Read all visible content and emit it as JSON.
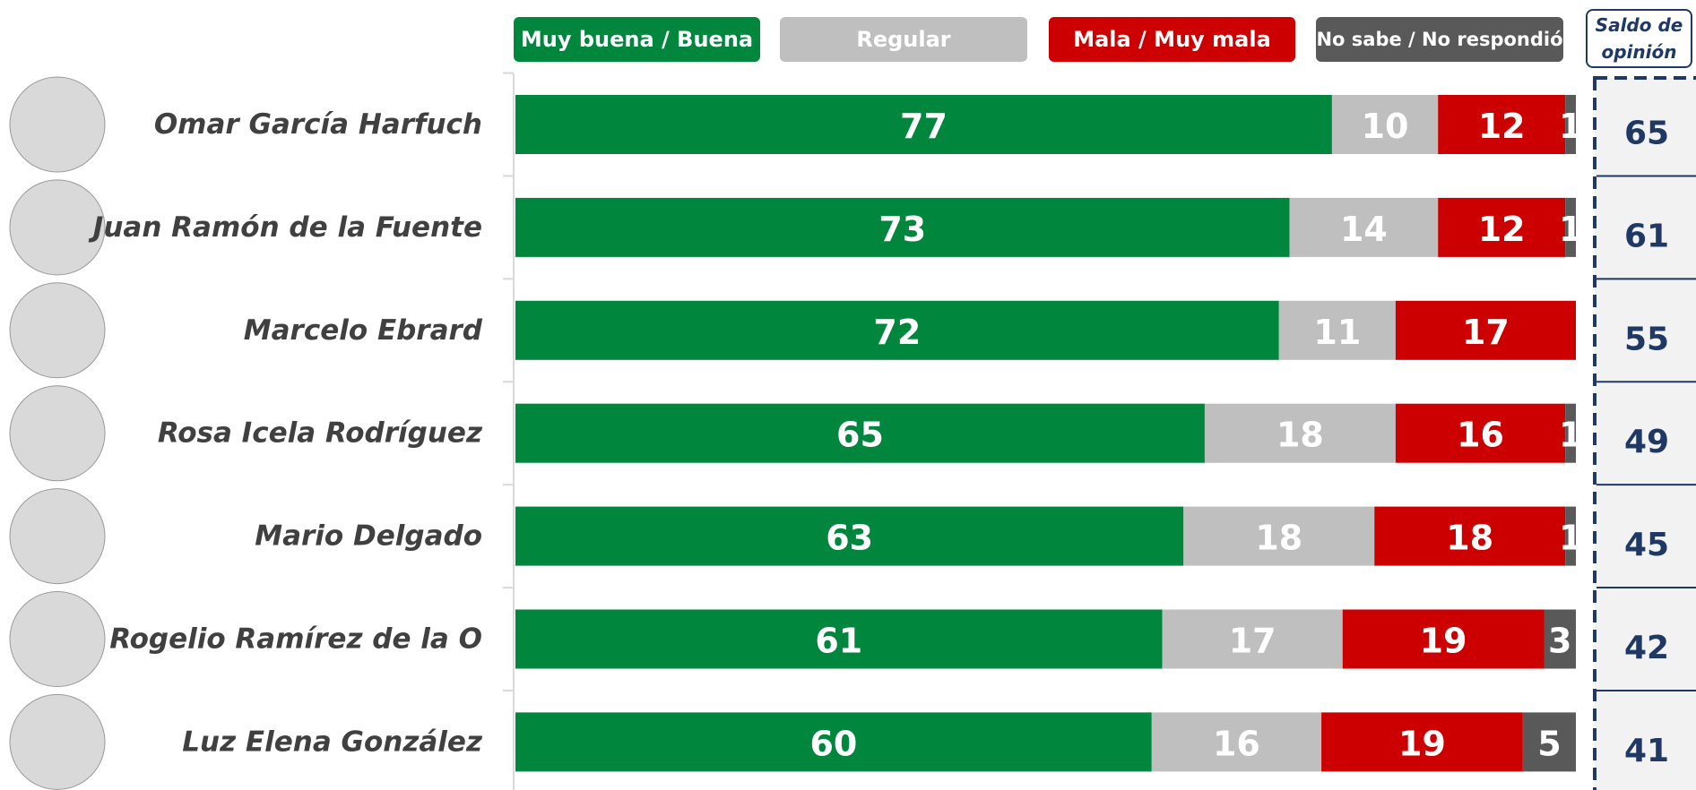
{
  "chart_data": {
    "type": "stacked-bar-horizontal",
    "categories": [
      "Omar García Harfuch",
      "Juan Ramón de la Fuente",
      "Marcelo Ebrard",
      "Rosa Icela Rodríguez",
      "Mario Delgado",
      "Rogelio Ramírez de la O",
      "Luz Elena González"
    ],
    "series": [
      {
        "name": "Muy buena / Buena",
        "color": "#00873d",
        "values": [
          77,
          73,
          72,
          65,
          63,
          61,
          60
        ]
      },
      {
        "name": "Regular",
        "color": "#bfbfbf",
        "values": [
          10,
          14,
          11,
          18,
          18,
          17,
          16
        ]
      },
      {
        "name": "Mala / Muy mala",
        "color": "#cc0000",
        "values": [
          12,
          12,
          17,
          16,
          18,
          19,
          19
        ]
      },
      {
        "name": "No sabe / No respondió",
        "color": "#595959",
        "values": [
          1,
          1,
          null,
          1,
          1,
          3,
          5
        ]
      }
    ],
    "xlim": [
      0,
      100
    ],
    "saldo": {
      "title": "Saldo de opinión",
      "color": "#1f3864",
      "values": [
        65,
        61,
        55,
        49,
        45,
        42,
        41
      ]
    }
  }
}
